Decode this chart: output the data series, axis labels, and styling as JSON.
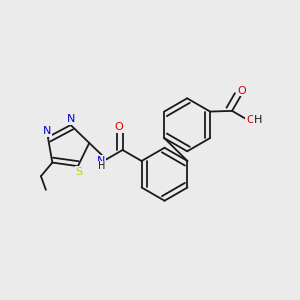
{
  "bg_color": "#ebebeb",
  "bond_color": "#1a1a1a",
  "atom_colors": {
    "N": "#0000dd",
    "O": "#dd0000",
    "S": "#cccc00",
    "H": "#1a1a1a",
    "C": "#1a1a1a"
  },
  "lw": 1.3,
  "dbo": 0.018,
  "hex_r": 0.082,
  "pent_r": 0.068
}
